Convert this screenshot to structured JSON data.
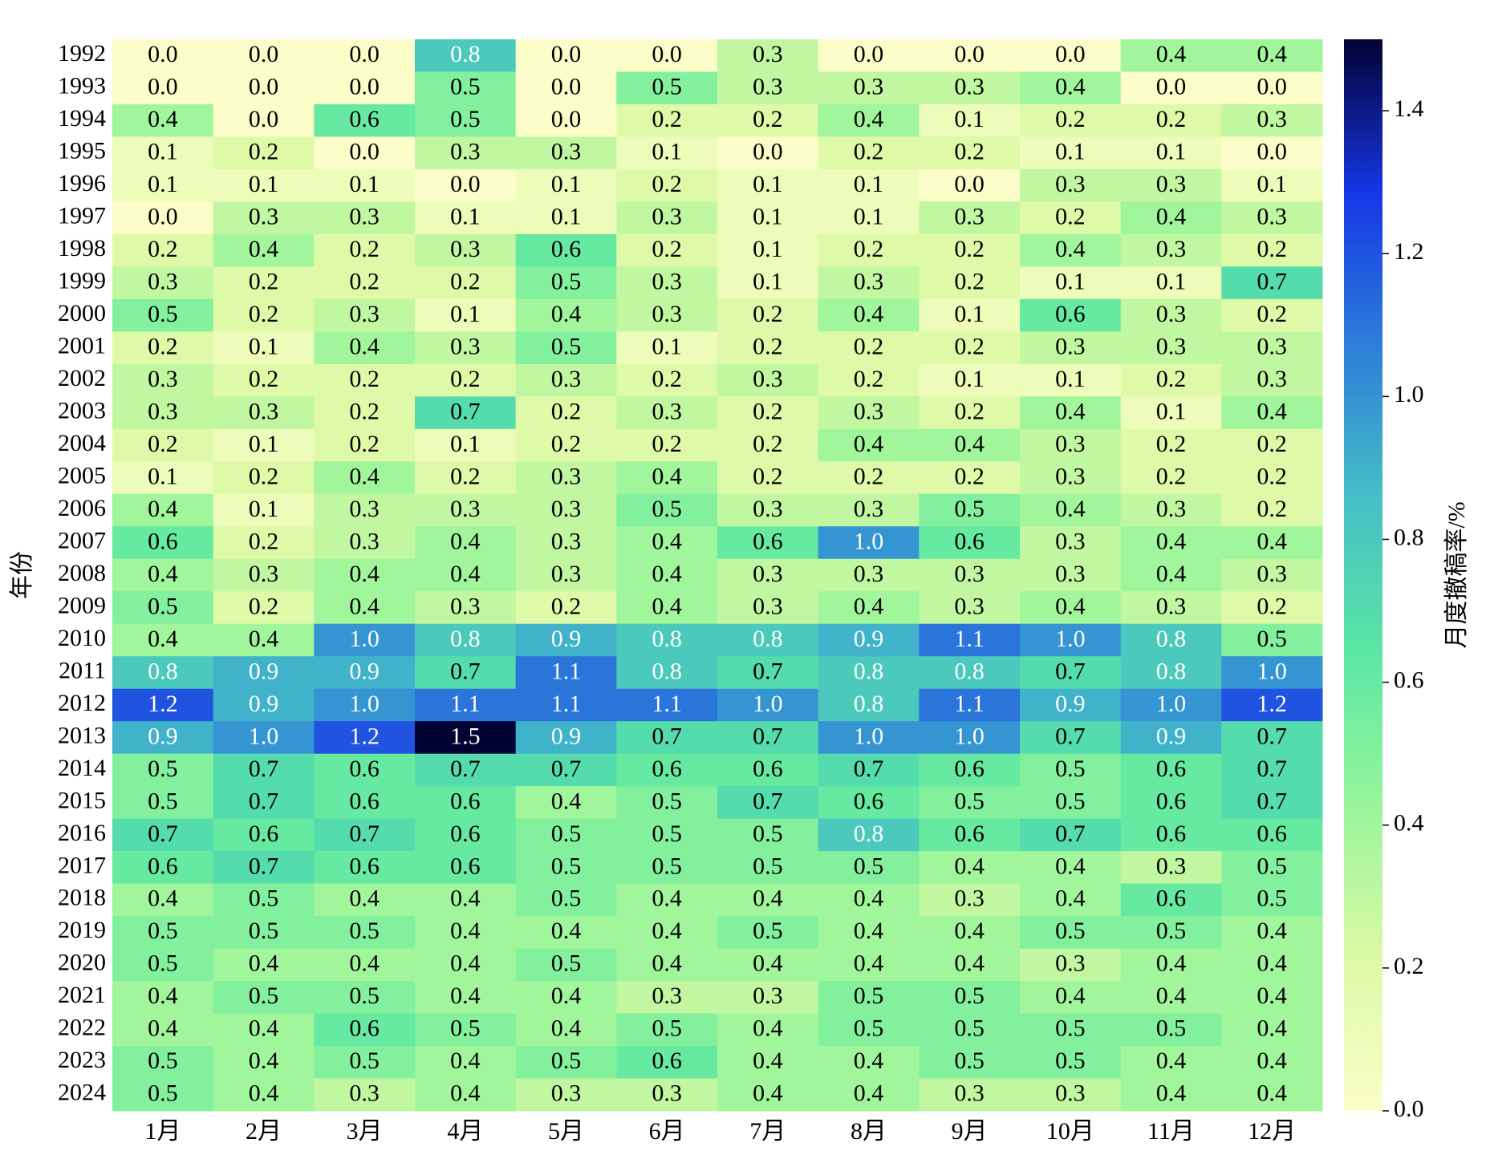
{
  "chart_data": {
    "type": "heatmap",
    "x_label": null,
    "y_label": "年份",
    "colorbar_label": "月度撤稿率/%",
    "categories": [
      "1月",
      "2月",
      "3月",
      "4月",
      "5月",
      "6月",
      "7月",
      "8月",
      "9月",
      "10月",
      "11月",
      "12月"
    ],
    "rows": [
      "1992",
      "1993",
      "1994",
      "1995",
      "1996",
      "1997",
      "1998",
      "1999",
      "2000",
      "2001",
      "2002",
      "2003",
      "2004",
      "2005",
      "2006",
      "2007",
      "2008",
      "2009",
      "2010",
      "2011",
      "2012",
      "2013",
      "2014",
      "2015",
      "2016",
      "2017",
      "2018",
      "2019",
      "2020",
      "2021",
      "2022",
      "2023",
      "2024"
    ],
    "values": [
      [
        0.0,
        0.0,
        0.0,
        0.8,
        0.0,
        0.0,
        0.3,
        0.0,
        0.0,
        0.0,
        0.4,
        0.4
      ],
      [
        0.0,
        0.0,
        0.0,
        0.5,
        0.0,
        0.5,
        0.3,
        0.3,
        0.3,
        0.4,
        0.0,
        0.0
      ],
      [
        0.4,
        0.0,
        0.6,
        0.5,
        0.0,
        0.2,
        0.2,
        0.4,
        0.1,
        0.2,
        0.2,
        0.3
      ],
      [
        0.1,
        0.2,
        0.0,
        0.3,
        0.3,
        0.1,
        0.0,
        0.2,
        0.2,
        0.1,
        0.1,
        0.0
      ],
      [
        0.1,
        0.1,
        0.1,
        0.0,
        0.1,
        0.2,
        0.1,
        0.1,
        0.0,
        0.3,
        0.3,
        0.1
      ],
      [
        0.0,
        0.3,
        0.3,
        0.1,
        0.1,
        0.3,
        0.1,
        0.1,
        0.3,
        0.2,
        0.4,
        0.3
      ],
      [
        0.2,
        0.4,
        0.2,
        0.3,
        0.6,
        0.2,
        0.1,
        0.2,
        0.2,
        0.4,
        0.3,
        0.2
      ],
      [
        0.3,
        0.2,
        0.2,
        0.2,
        0.5,
        0.3,
        0.1,
        0.3,
        0.2,
        0.1,
        0.1,
        0.7
      ],
      [
        0.5,
        0.2,
        0.3,
        0.1,
        0.4,
        0.3,
        0.2,
        0.4,
        0.1,
        0.6,
        0.3,
        0.2
      ],
      [
        0.2,
        0.1,
        0.4,
        0.3,
        0.5,
        0.1,
        0.2,
        0.2,
        0.2,
        0.3,
        0.3,
        0.3
      ],
      [
        0.3,
        0.2,
        0.2,
        0.2,
        0.3,
        0.2,
        0.3,
        0.2,
        0.1,
        0.1,
        0.2,
        0.3
      ],
      [
        0.3,
        0.3,
        0.2,
        0.7,
        0.2,
        0.3,
        0.2,
        0.3,
        0.2,
        0.4,
        0.1,
        0.4
      ],
      [
        0.2,
        0.1,
        0.2,
        0.1,
        0.2,
        0.2,
        0.2,
        0.4,
        0.4,
        0.3,
        0.2,
        0.2
      ],
      [
        0.1,
        0.2,
        0.4,
        0.2,
        0.3,
        0.4,
        0.2,
        0.2,
        0.2,
        0.3,
        0.2,
        0.2
      ],
      [
        0.4,
        0.1,
        0.3,
        0.3,
        0.3,
        0.5,
        0.3,
        0.3,
        0.5,
        0.4,
        0.3,
        0.2
      ],
      [
        0.6,
        0.2,
        0.3,
        0.4,
        0.3,
        0.4,
        0.6,
        1.0,
        0.6,
        0.3,
        0.4,
        0.4
      ],
      [
        0.4,
        0.3,
        0.4,
        0.4,
        0.3,
        0.4,
        0.3,
        0.3,
        0.3,
        0.3,
        0.4,
        0.3
      ],
      [
        0.5,
        0.2,
        0.4,
        0.3,
        0.2,
        0.4,
        0.3,
        0.4,
        0.3,
        0.4,
        0.3,
        0.2
      ],
      [
        0.4,
        0.4,
        1.0,
        0.8,
        0.9,
        0.8,
        0.8,
        0.9,
        1.1,
        1.0,
        0.8,
        0.5
      ],
      [
        0.8,
        0.9,
        0.9,
        0.7,
        1.1,
        0.8,
        0.7,
        0.8,
        0.8,
        0.7,
        0.8,
        1.0
      ],
      [
        1.2,
        0.9,
        1.0,
        1.1,
        1.1,
        1.1,
        1.0,
        0.8,
        1.1,
        0.9,
        1.0,
        1.2
      ],
      [
        0.9,
        1.0,
        1.2,
        1.5,
        0.9,
        0.7,
        0.7,
        1.0,
        1.0,
        0.7,
        0.9,
        0.7
      ],
      [
        0.5,
        0.7,
        0.6,
        0.7,
        0.7,
        0.6,
        0.6,
        0.7,
        0.6,
        0.5,
        0.6,
        0.7
      ],
      [
        0.5,
        0.7,
        0.6,
        0.6,
        0.4,
        0.5,
        0.7,
        0.6,
        0.5,
        0.5,
        0.6,
        0.7
      ],
      [
        0.7,
        0.6,
        0.7,
        0.6,
        0.5,
        0.5,
        0.5,
        0.8,
        0.6,
        0.7,
        0.6,
        0.6
      ],
      [
        0.6,
        0.7,
        0.6,
        0.6,
        0.5,
        0.5,
        0.5,
        0.5,
        0.4,
        0.4,
        0.3,
        0.5
      ],
      [
        0.4,
        0.5,
        0.4,
        0.4,
        0.5,
        0.4,
        0.4,
        0.4,
        0.3,
        0.4,
        0.6,
        0.5
      ],
      [
        0.5,
        0.5,
        0.5,
        0.4,
        0.4,
        0.4,
        0.5,
        0.4,
        0.4,
        0.5,
        0.5,
        0.4
      ],
      [
        0.5,
        0.4,
        0.4,
        0.4,
        0.5,
        0.4,
        0.4,
        0.4,
        0.4,
        0.3,
        0.4,
        0.4
      ],
      [
        0.4,
        0.5,
        0.5,
        0.4,
        0.4,
        0.3,
        0.3,
        0.5,
        0.5,
        0.4,
        0.4,
        0.4
      ],
      [
        0.4,
        0.4,
        0.6,
        0.5,
        0.4,
        0.5,
        0.4,
        0.5,
        0.5,
        0.5,
        0.5,
        0.4
      ],
      [
        0.5,
        0.4,
        0.5,
        0.4,
        0.5,
        0.6,
        0.4,
        0.4,
        0.5,
        0.5,
        0.4,
        0.4
      ],
      [
        0.5,
        0.4,
        0.3,
        0.4,
        0.3,
        0.3,
        0.4,
        0.4,
        0.3,
        0.3,
        0.4,
        0.4
      ]
    ],
    "value_labels": [
      [
        "0.0",
        "0.0",
        "0.0",
        "0.8",
        "0.0",
        "0.0",
        "0.3",
        "0.0",
        "0.0",
        "0.0",
        "0.4",
        "0.4"
      ],
      [
        "0.0",
        "0.0",
        "0.0",
        "0.5",
        "0.0",
        "0.5",
        "0.3",
        "0.3",
        "0.3",
        "0.4",
        "0.0",
        "0.0"
      ],
      [
        "0.4",
        "0.0",
        "0.6",
        "0.5",
        "0.0",
        "0.2",
        "0.2",
        "0.4",
        "0.1",
        "0.2",
        "0.2",
        "0.3"
      ],
      [
        "0.1",
        "0.2",
        "0.0",
        "0.3",
        "0.3",
        "0.1",
        "0.0",
        "0.2",
        "0.2",
        "0.1",
        "0.1",
        "0.0"
      ],
      [
        "0.1",
        "0.1",
        "0.1",
        "0.0",
        "0.1",
        "0.2",
        "0.1",
        "0.1",
        "0.0",
        "0.3",
        "0.3",
        "0.1"
      ],
      [
        "0.0",
        "0.3",
        "0.3",
        "0.1",
        "0.1",
        "0.3",
        "0.1",
        "0.1",
        "0.3",
        "0.2",
        "0.4",
        "0.3"
      ],
      [
        "0.2",
        "0.4",
        "0.2",
        "0.3",
        "0.6",
        "0.2",
        "0.1",
        "0.2",
        "0.2",
        "0.4",
        "0.3",
        "0.2"
      ],
      [
        "0.3",
        "0.2",
        "0.2",
        "0.2",
        "0.5",
        "0.3",
        "0.1",
        "0.3",
        "0.2",
        "0.1",
        "0.1",
        "0.7"
      ],
      [
        "0.5",
        "0.2",
        "0.3",
        "0.1",
        "0.4",
        "0.3",
        "0.2",
        "0.4",
        "0.1",
        "0.6",
        "0.3",
        "0.2"
      ],
      [
        "0.2",
        "0.1",
        "0.4",
        "0.3",
        "0.5",
        "0.1",
        "0.2",
        "0.2",
        "0.2",
        "0.3",
        "0.3",
        "0.3"
      ],
      [
        "0.3",
        "0.2",
        "0.2",
        "0.2",
        "0.3",
        "0.2",
        "0.3",
        "0.2",
        "0.1",
        "0.1",
        "0.2",
        "0.3"
      ],
      [
        "0.3",
        "0.3",
        "0.2",
        "0.7",
        "0.2",
        "0.3",
        "0.2",
        "0.3",
        "0.2",
        "0.4",
        "0.1",
        "0.4"
      ],
      [
        "0.2",
        "0.1",
        "0.2",
        "0.1",
        "0.2",
        "0.2",
        "0.2",
        "0.4",
        "0.4",
        "0.3",
        "0.2",
        "0.2"
      ],
      [
        "0.1",
        "0.2",
        "0.4",
        "0.2",
        "0.3",
        "0.4",
        "0.2",
        "0.2",
        "0.2",
        "0.3",
        "0.2",
        "0.2"
      ],
      [
        "0.4",
        "0.1",
        "0.3",
        "0.3",
        "0.3",
        "0.5",
        "0.3",
        "0.3",
        "0.5",
        "0.4",
        "0.3",
        "0.2"
      ],
      [
        "0.6",
        "0.2",
        "0.3",
        "0.4",
        "0.3",
        "0.4",
        "0.6",
        "1.0",
        "0.6",
        "0.3",
        "0.4",
        "0.4"
      ],
      [
        "0.4",
        "0.3",
        "0.4",
        "0.4",
        "0.3",
        "0.4",
        "0.3",
        "0.3",
        "0.3",
        "0.3",
        "0.4",
        "0.3"
      ],
      [
        "0.5",
        "0.2",
        "0.4",
        "0.3",
        "0.2",
        "0.4",
        "0.3",
        "0.4",
        "0.3",
        "0.4",
        "0.3",
        "0.2"
      ],
      [
        "0.4",
        "0.4",
        "1.0",
        "0.8",
        "0.9",
        "0.8",
        "0.8",
        "0.9",
        "1.1",
        "1.0",
        "0.8",
        "0.5"
      ],
      [
        "0.8",
        "0.9",
        "0.9",
        "0.7",
        "1.1",
        "0.8",
        "0.7",
        "0.8",
        "0.8",
        "0.7",
        "0.8",
        "1.0"
      ],
      [
        "1.2",
        "0.9",
        "1.0",
        "1.1",
        "1.1",
        "1.1",
        "1.0",
        "0.8",
        "1.1",
        "0.9",
        "1.0",
        "1.2"
      ],
      [
        "0.9",
        "1.0",
        "1.2",
        "1.5",
        "0.9",
        "0.7",
        "0.7",
        "1.0",
        "1.0",
        "0.7",
        "0.9",
        "0.7"
      ],
      [
        "0.5",
        "0.7",
        "0.6",
        "0.7",
        "0.7",
        "0.6",
        "0.6",
        "0.7",
        "0.6",
        "0.5",
        "0.6",
        "0.7"
      ],
      [
        "0.5",
        "0.7",
        "0.6",
        "0.6",
        "0.4",
        "0.5",
        "0.7",
        "0.6",
        "0.5",
        "0.5",
        "0.6",
        "0.7"
      ],
      [
        "0.7",
        "0.6",
        "0.7",
        "0.6",
        "0.5",
        "0.5",
        "0.5",
        "0.8",
        "0.6",
        "0.7",
        "0.6",
        "0.6"
      ],
      [
        "0.6",
        "0.7",
        "0.6",
        "0.6",
        "0.5",
        "0.5",
        "0.5",
        "0.5",
        "0.4",
        "0.4",
        "0.3",
        "0.5"
      ],
      [
        "0.4",
        "0.5",
        "0.4",
        "0.4",
        "0.5",
        "0.4",
        "0.4",
        "0.4",
        "0.3",
        "0.4",
        "0.6",
        "0.5"
      ],
      [
        "0.5",
        "0.5",
        "0.5",
        "0.4",
        "0.4",
        "0.4",
        "0.5",
        "0.4",
        "0.4",
        "0.5",
        "0.5",
        "0.4"
      ],
      [
        "0.5",
        "0.4",
        "0.4",
        "0.4",
        "0.5",
        "0.4",
        "0.4",
        "0.4",
        "0.4",
        "0.3",
        "0.4",
        "0.4"
      ],
      [
        "0.4",
        "0.5",
        "0.5",
        "0.4",
        "0.4",
        "0.3",
        "0.3",
        "0.5",
        "0.5",
        "0.4",
        "0.4",
        "0.4"
      ],
      [
        "0.4",
        "0.4",
        "0.6",
        "0.5",
        "0.4",
        "0.5",
        "0.4",
        "0.5",
        "0.5",
        "0.5",
        "0.5",
        "0.4"
      ],
      [
        "0.5",
        "0.4",
        "0.5",
        "0.4",
        "0.5",
        "0.6",
        "0.4",
        "0.4",
        "0.5",
        "0.5",
        "0.4",
        "0.4"
      ],
      [
        "0.5",
        "0.4",
        "0.3",
        "0.4",
        "0.3",
        "0.3",
        "0.4",
        "0.4",
        "0.3",
        "0.3",
        "0.4",
        "0.4"
      ]
    ],
    "colormap": [
      "#fbfec9",
      "#dcf9a6",
      "#98f59a",
      "#5ae6a3",
      "#45bfc6",
      "#2d7ed8",
      "#1536e6",
      "#020233"
    ],
    "clim": [
      0,
      1.5
    ],
    "cticks": [
      {
        "value": 0,
        "label": "0.0"
      },
      0.2,
      0.4,
      0.6,
      0.8,
      {
        "value": 1,
        "label": "1.0"
      },
      1.2,
      1.4
    ]
  }
}
